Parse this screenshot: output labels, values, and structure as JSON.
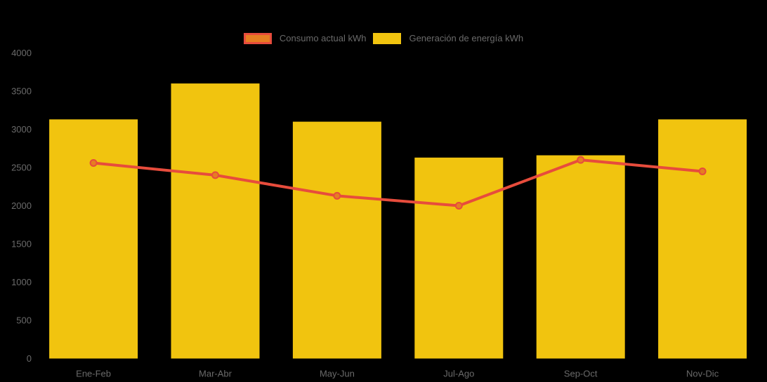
{
  "background_color": "#000000",
  "text_color": "#6a6a6a",
  "chart_data": {
    "type": "bar",
    "title": "",
    "xlabel": "",
    "ylabel": "",
    "categories": [
      "Ene-Feb",
      "Mar-Abr",
      "May-Jun",
      "Jul-Ago",
      "Sep-Oct",
      "Nov-Dic"
    ],
    "series": [
      {
        "name": "Consumo actual kWh",
        "type": "line",
        "color": "#e74c3c",
        "point_fill": "#e67e22",
        "values": [
          2560,
          2400,
          2130,
          2000,
          2600,
          2450
        ]
      },
      {
        "name": "Generación de energía kWh",
        "type": "bar",
        "color": "#f1c40f",
        "values": [
          3130,
          3600,
          3100,
          2630,
          2660,
          3130
        ]
      }
    ],
    "ylim": [
      0,
      4000
    ],
    "y_ticks": [
      0,
      500,
      1000,
      1500,
      2000,
      2500,
      3000,
      3500,
      4000
    ],
    "grid": false,
    "legend_position": "top-center"
  }
}
